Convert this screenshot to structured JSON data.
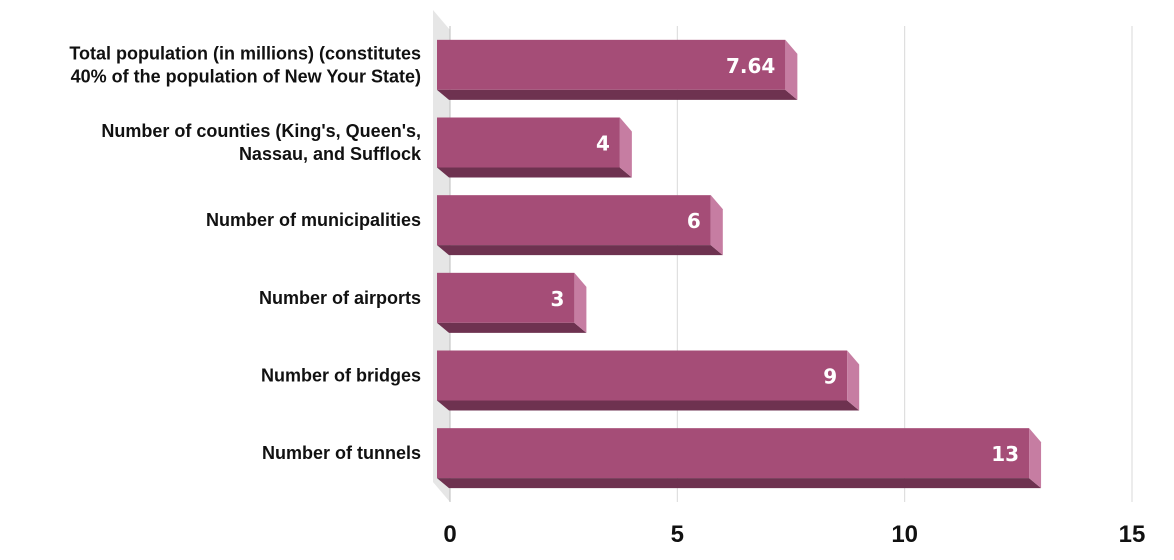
{
  "chart_data": {
    "type": "bar",
    "orientation": "horizontal",
    "style": "3d",
    "title": "",
    "xlabel": "",
    "ylabel": "",
    "categories": [
      [
        "Total population (in millions) (constitutes",
        "40% of the population of New Your State)"
      ],
      [
        "Number of counties (King's, Queen's,",
        "Nassau, and Sufflock"
      ],
      [
        "Number of municipalities"
      ],
      [
        "Number of airports"
      ],
      [
        "Number of bridges"
      ],
      [
        "Number of tunnels"
      ]
    ],
    "values": [
      7.64,
      4,
      6,
      3,
      9,
      13
    ],
    "data_labels": [
      "7.64",
      "4",
      "6",
      "3",
      "9",
      "13"
    ],
    "xlim": [
      0,
      15
    ],
    "xticks": [
      0,
      5,
      10,
      15
    ],
    "xtick_labels": [
      "0",
      "5",
      "10",
      "15"
    ],
    "grid": true,
    "legend": "none",
    "colors": {
      "bar_front": "#a54d77",
      "bar_side": "#c67da2",
      "bar_bottom": "#6e3250",
      "wall": "#e6e6e6",
      "grid": "#d9d9d9"
    }
  }
}
